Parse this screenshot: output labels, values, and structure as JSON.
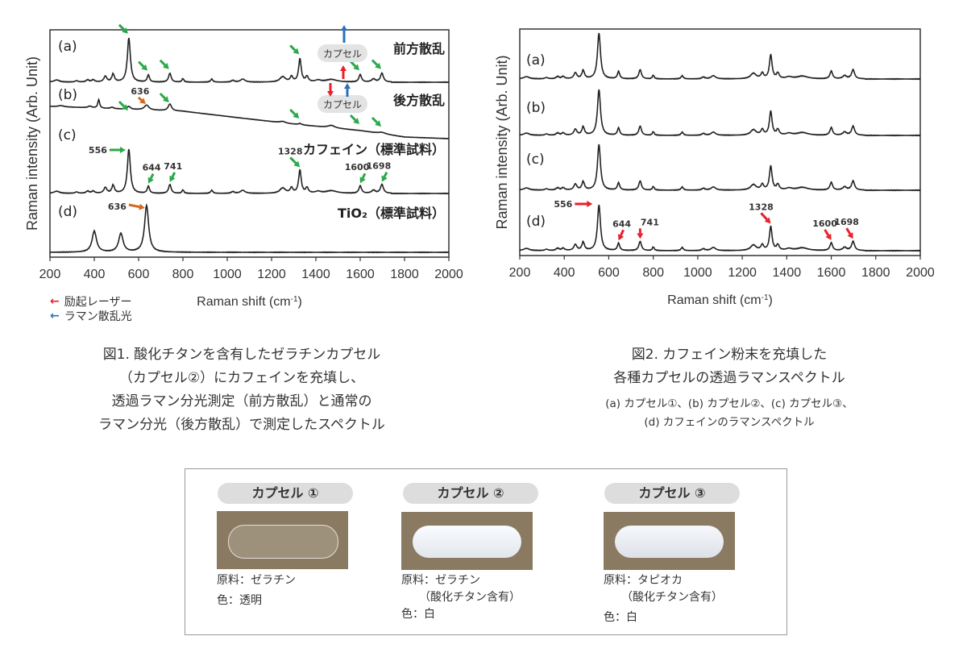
{
  "figure1": {
    "ylabel": "Raman intensity (Arb. Unit)",
    "xlabel": "Raman shift (cm⁻¹)",
    "xlabel_main": "Raman shift (cm",
    "xlabel_sup": "-1",
    "xlabel_end": ")",
    "trace_labels": [
      "(a)",
      "(b)",
      "(c)",
      "(d)"
    ],
    "trace_titles": [
      "前方散乱",
      "後方散乱",
      "カフェイン（標準試料）",
      "TiO₂（標準試料）"
    ],
    "capsule_label": "カプセル",
    "peak_labels_c": [
      "556",
      "644",
      "741",
      "1328",
      "1600",
      "1698"
    ],
    "peak_label_b": "636",
    "peak_label_d": "636",
    "legend": [
      {
        "label": "励起レーザー",
        "color": "#e8202a"
      },
      {
        "label": "ラマン散乱光",
        "color": "#2a6fb8"
      }
    ],
    "caption": [
      "図1. 酸化チタンを含有したゼラチンカプセル",
      "（カプセル②）にカフェインを充填し、",
      "透過ラマン分光測定（前方散乱）と通常の",
      "ラマン分光（後方散乱）で測定したスペクトル"
    ]
  },
  "figure2": {
    "ylabel": "Raman intensity (Arb. Unit)",
    "xlabel_main": "Raman shift (cm",
    "xlabel_sup": "-1",
    "xlabel_end": ")",
    "trace_labels": [
      "(a)",
      "(b)",
      "(c)",
      "(d)"
    ],
    "peak_labels_d": [
      "556",
      "644",
      "741",
      "1328",
      "1600",
      "1698"
    ],
    "caption": [
      "図2. カフェイン粉末を充填した",
      "各種カプセルの透過ラマンスペクトル"
    ],
    "subcaption": [
      "(a) カプセル①、(b) カプセル②、(c) カプセル③、",
      "(d) カフェインのラマンスペクトル"
    ]
  },
  "capsules": [
    {
      "title": "カプセル ①",
      "lines": [
        "原料：ゼラチン",
        "色：透明"
      ]
    },
    {
      "title": "カプセル ②",
      "lines": [
        "原料：ゼラチン",
        "（酸化チタン含有）",
        "色：白"
      ]
    },
    {
      "title": "カプセル ③",
      "lines": [
        "原料：タピオカ",
        "（酸化チタン含有）",
        "色：白"
      ]
    }
  ],
  "chart_data": [
    {
      "type": "line",
      "title": "",
      "xlabel": "Raman shift (cm-1)",
      "ylabel": "Raman intensity (Arb. Unit)",
      "xlim": [
        200,
        2000
      ],
      "xticks": [
        200,
        400,
        600,
        800,
        1000,
        1200,
        1400,
        1600,
        1800,
        2000
      ],
      "grid": false,
      "series": [
        {
          "name": "(a) 前方散乱",
          "kind": "caffeine",
          "arrow_color": "#2aa84a",
          "arrows": [
            556,
            644,
            741,
            1328,
            1600,
            1698
          ]
        },
        {
          "name": "(b) 後方散乱",
          "kind": "backscatter",
          "arrow_color": "#2aa84a",
          "arrows": [
            556,
            741,
            1328,
            1600,
            1698
          ],
          "tio2_arrow": 636,
          "peaks": [
            [
              250,
              0.05,
              15
            ],
            [
              380,
              0.07,
              10
            ],
            [
              420,
              0.35,
              5
            ],
            [
              480,
              0.06,
              8
            ],
            [
              556,
              0.12,
              8
            ],
            [
              636,
              0.2,
              12
            ],
            [
              741,
              0.28,
              9
            ],
            [
              1250,
              0.06,
              15
            ],
            [
              1328,
              0.05,
              8
            ],
            [
              1470,
              0.1,
              18
            ],
            [
              1698,
              0.06,
              20
            ]
          ],
          "baseline": [
            [
              200,
              1
            ],
            [
              800,
              0.85
            ],
            [
              1300,
              0.45
            ],
            [
              1600,
              0.25
            ],
            [
              1800,
              0.05
            ],
            [
              2000,
              0
            ]
          ]
        },
        {
          "name": "(c) カフェイン（標準試料）",
          "kind": "caffeine",
          "arrow_color": "#2aa84a",
          "arrows": [
            556,
            644,
            741,
            1328,
            1600,
            1698
          ]
        },
        {
          "name": "(d) TiO2（標準試料）",
          "peaks": [
            [
              400,
              0.45,
              12
            ],
            [
              520,
              0.4,
              12
            ],
            [
              636,
              1.0,
              11
            ]
          ],
          "arrow_color": "#d2691e",
          "arrows": [
            636
          ]
        }
      ]
    },
    {
      "type": "line",
      "title": "",
      "xlabel": "Raman shift (cm-1)",
      "ylabel": "Raman intensity (Arb. Unit)",
      "xlim": [
        200,
        2000
      ],
      "xticks": [
        200,
        400,
        600,
        800,
        1000,
        1200,
        1400,
        1600,
        1800,
        2000
      ],
      "grid": false,
      "series": [
        {
          "name": "(a)",
          "kind": "caffeine"
        },
        {
          "name": "(b)",
          "kind": "caffeine"
        },
        {
          "name": "(c)",
          "kind": "caffeine"
        },
        {
          "name": "(d)",
          "kind": "caffeine",
          "arrow_color": "#e8202a",
          "arrows": [
            556,
            644,
            741,
            1328,
            1600,
            1698
          ]
        }
      ]
    },
    {
      "caffeine_peaks": [
        [
          230,
          0.05,
          15
        ],
        [
          320,
          0.03,
          8
        ],
        [
          370,
          0.05,
          8
        ],
        [
          395,
          0.05,
          8
        ],
        [
          450,
          0.13,
          8
        ],
        [
          485,
          0.18,
          7
        ],
        [
          556,
          1.0,
          8
        ],
        [
          644,
          0.16,
          6
        ],
        [
          741,
          0.2,
          7
        ],
        [
          800,
          0.08,
          5
        ],
        [
          930,
          0.07,
          6
        ],
        [
          1025,
          0.04,
          8
        ],
        [
          1070,
          0.07,
          12
        ],
        [
          1250,
          0.12,
          15
        ],
        [
          1290,
          0.12,
          7
        ],
        [
          1328,
          0.52,
          7
        ],
        [
          1360,
          0.12,
          7
        ],
        [
          1410,
          0.04,
          15
        ],
        [
          1470,
          0.06,
          30
        ],
        [
          1600,
          0.17,
          7
        ],
        [
          1660,
          0.07,
          10
        ],
        [
          1698,
          0.2,
          8
        ]
      ]
    }
  ]
}
